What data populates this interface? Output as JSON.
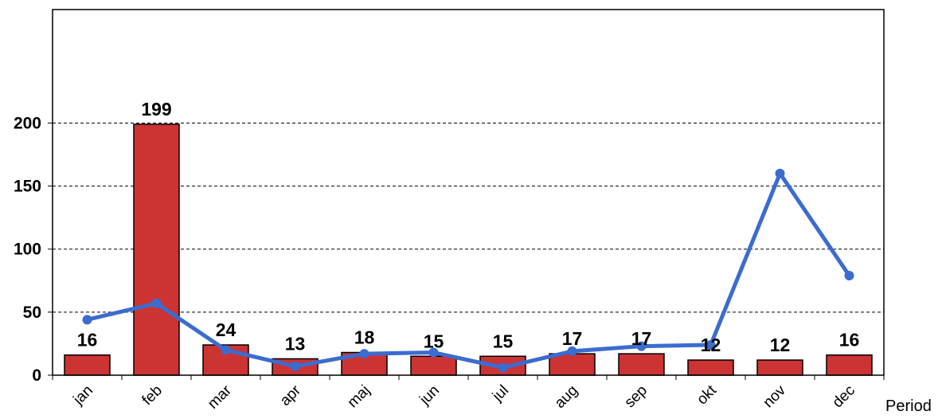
{
  "chart_data": {
    "type": "bar",
    "categories": [
      "jan",
      "feb",
      "mar",
      "apr",
      "maj",
      "jun",
      "jul",
      "aug",
      "sep",
      "okt",
      "nov",
      "dec"
    ],
    "series": [
      {
        "kind": "bar",
        "values": [
          16,
          199,
          24,
          13,
          18,
          15,
          15,
          17,
          17,
          12,
          12,
          16
        ],
        "data_labels": [
          "16",
          "199",
          "24",
          "13",
          "18",
          "15",
          "15",
          "17",
          "17",
          "12",
          "12",
          "16"
        ]
      },
      {
        "kind": "line",
        "values": [
          44,
          57,
          20,
          7,
          17,
          18,
          6,
          19,
          23,
          24,
          160,
          79
        ]
      }
    ],
    "xlabel": "Period",
    "ylabel": "",
    "ylim": [
      0,
      290
    ],
    "yticks": [
      0,
      50,
      100,
      150,
      200
    ],
    "grid": "horizontal-dashed",
    "colors": {
      "bar_fill": "#cc3333",
      "bar_stroke": "#000000",
      "line": "#3b6ccf",
      "grid": "#000000"
    }
  }
}
